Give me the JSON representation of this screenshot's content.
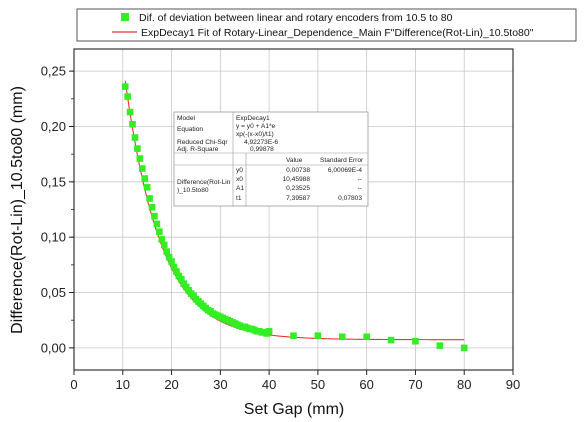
{
  "chart_data": {
    "type": "scatter",
    "xlabel": "Set Gap (mm)",
    "ylabel": "Difference(Rot-Lin)_10.5to80 (mm)",
    "xlim": [
      0,
      90
    ],
    "ylim": [
      -0.02,
      0.27
    ],
    "xticks": [
      "0",
      "10",
      "20",
      "30",
      "40",
      "50",
      "60",
      "70",
      "80",
      "90"
    ],
    "yticks": [
      "0,00",
      "0,05",
      "0,10",
      "0,15",
      "0,20",
      "0,25"
    ],
    "grid": true,
    "legend_position": "top",
    "legend": [
      {
        "label": "Dif. of deviation between linear and rotary encoders from 10.5 to 80",
        "marker": "square",
        "color": "#33ee22"
      },
      {
        "label": "ExpDecay1 Fit of Rotary-Linear_Dependence_Main F\"Difference(Rot-Lin)_10.5to80\"",
        "marker": "line",
        "color": "#ee3333"
      }
    ],
    "series": [
      {
        "name": "Dif. of deviation between linear and rotary encoders from 10.5 to 80",
        "color": "#33ee22",
        "points": [
          [
            10.5,
            0.236
          ],
          [
            11,
            0.227
          ],
          [
            11.5,
            0.213
          ],
          [
            12,
            0.202
          ],
          [
            12.5,
            0.19
          ],
          [
            13,
            0.18
          ],
          [
            13.5,
            0.171
          ],
          [
            14,
            0.162
          ],
          [
            14.5,
            0.153
          ],
          [
            15,
            0.145
          ],
          [
            15.5,
            0.135
          ],
          [
            16,
            0.127
          ],
          [
            16.5,
            0.119
          ],
          [
            17,
            0.112
          ],
          [
            17.5,
            0.105
          ],
          [
            18,
            0.098
          ],
          [
            18.5,
            0.093
          ],
          [
            19,
            0.087
          ],
          [
            19.5,
            0.082
          ],
          [
            20,
            0.078
          ],
          [
            20.5,
            0.073
          ],
          [
            21,
            0.069
          ],
          [
            21.5,
            0.065
          ],
          [
            22,
            0.062
          ],
          [
            22.5,
            0.058
          ],
          [
            23,
            0.055
          ],
          [
            23.5,
            0.052
          ],
          [
            24,
            0.049
          ],
          [
            24.5,
            0.047
          ],
          [
            25,
            0.044
          ],
          [
            25.5,
            0.042
          ],
          [
            26,
            0.04
          ],
          [
            26.5,
            0.038
          ],
          [
            27,
            0.036
          ],
          [
            27.5,
            0.034
          ],
          [
            28,
            0.033
          ],
          [
            28.5,
            0.031
          ],
          [
            29,
            0.03
          ],
          [
            29.5,
            0.029
          ],
          [
            30,
            0.028
          ],
          [
            30.5,
            0.027
          ],
          [
            31,
            0.026
          ],
          [
            31.5,
            0.025
          ],
          [
            32,
            0.024
          ],
          [
            32.5,
            0.023
          ],
          [
            33,
            0.022
          ],
          [
            33.5,
            0.021
          ],
          [
            34,
            0.02
          ],
          [
            34.5,
            0.019
          ],
          [
            35,
            0.019
          ],
          [
            35.5,
            0.018
          ],
          [
            36,
            0.017
          ],
          [
            36.5,
            0.017
          ],
          [
            37,
            0.016
          ],
          [
            37.5,
            0.015
          ],
          [
            38,
            0.015
          ],
          [
            38.5,
            0.014
          ],
          [
            39,
            0.014
          ],
          [
            39.5,
            0.013
          ],
          [
            40,
            0.015
          ],
          [
            45,
            0.011
          ],
          [
            50,
            0.011
          ],
          [
            55,
            0.01
          ],
          [
            60,
            0.01
          ],
          [
            65,
            0.007
          ],
          [
            70,
            0.006
          ],
          [
            75,
            0.002
          ],
          [
            80,
            0.0
          ]
        ]
      }
    ],
    "fit": {
      "name": "ExpDecay1 Fit of Rotary-Linear_Dependence_Main F\"Difference(Rot-Lin)_10.5to80\"",
      "color": "#ee3333",
      "model": "y = y0 + A1*exp(-(x-x0)/t1)",
      "params": {
        "y0": 0.00738,
        "x0": 10.45988,
        "A1": 0.23525,
        "t1": 7.39587
      },
      "x_range": [
        10.5,
        80
      ]
    }
  },
  "fit_table": {
    "model_label": "Model",
    "model_value": "ExpDecay1",
    "equation_label": "Equation",
    "equation_line1": "y = y0 + A1*e",
    "equation_line2": "xp(-(x-x0)/t1)",
    "chisqr_label": "Reduced Chi-Sqr",
    "chisqr_value": "4,92273E-6",
    "rsq_label": "Adj. R-Square",
    "rsq_value": "0,99878",
    "value_header": "Value",
    "stderr_header": "Standard Error",
    "group_label_line1": "Difference(Rot-Lin",
    "group_label_line2": ")_10.5to80",
    "rows": [
      {
        "param": "y0",
        "value": "0,00738",
        "stderr": "6,00069E-4"
      },
      {
        "param": "x0",
        "value": "10,45988",
        "stderr": "--"
      },
      {
        "param": "A1",
        "value": "0,23525",
        "stderr": "--"
      },
      {
        "param": "t1",
        "value": "7,39587",
        "stderr": "0,07803"
      }
    ]
  }
}
